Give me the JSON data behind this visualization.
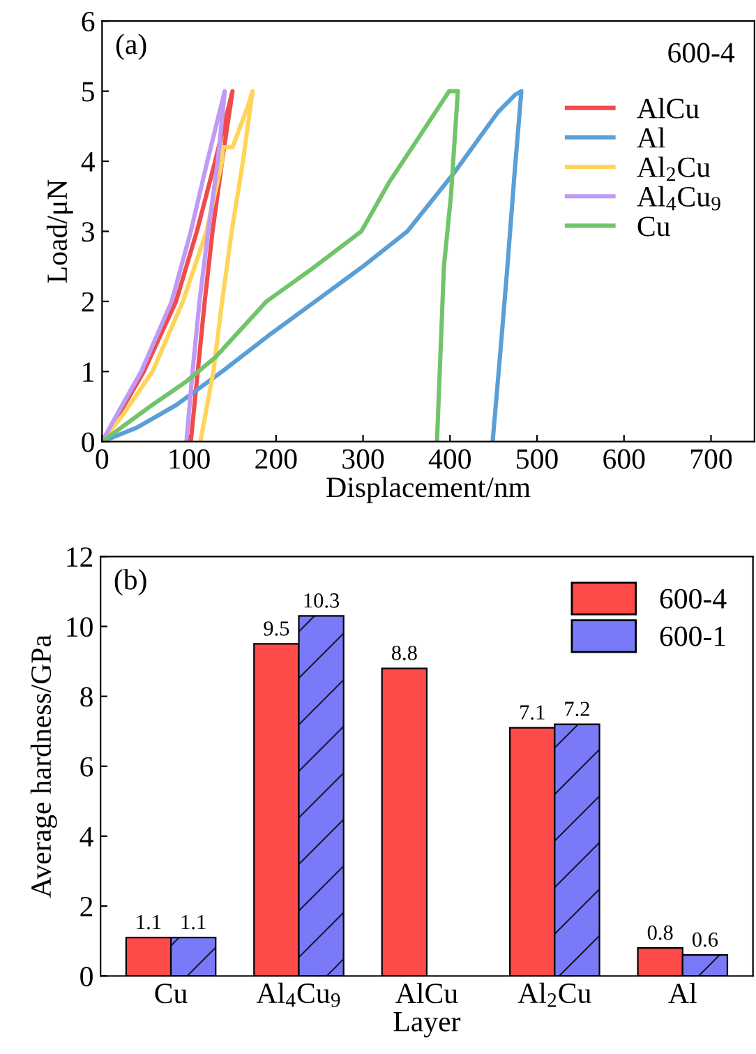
{
  "chart_data": [
    {
      "type": "line",
      "xlabel": "Displacement/nm",
      "ylabel": "Load/μN",
      "xlim": [
        0,
        750
      ],
      "ylim": [
        0,
        6
      ],
      "xticks": [
        0,
        100,
        200,
        300,
        400,
        500,
        600,
        700
      ],
      "yticks": [
        0,
        1,
        2,
        3,
        4,
        5,
        6
      ],
      "annotations": [
        "(a)",
        "600-4"
      ],
      "legend": "top right",
      "grid": false,
      "marker": "none",
      "line_style": "solid",
      "series": [
        {
          "name": "AlCu",
          "color": "#f04b4b",
          "x": [
            0,
            20,
            48,
            85,
            109,
            130,
            146,
            150,
            138,
            127,
            118,
            110,
            102
          ],
          "values": [
            0,
            0.4,
            1,
            2,
            3,
            4,
            4.8,
            5,
            4,
            3,
            2,
            1,
            0
          ]
        },
        {
          "name": "Al",
          "color": "#5a9fd6",
          "x": [
            0,
            40,
            85,
            138,
            190,
            245,
            300,
            351,
            405,
            455,
            475,
            482,
            474,
            466,
            458,
            449
          ],
          "values": [
            0,
            0.2,
            0.52,
            1,
            1.5,
            2,
            2.5,
            3,
            3.84,
            4.7,
            4.95,
            5,
            3.8,
            2.5,
            1.3,
            0
          ]
        },
        {
          "name": "Al$_{2}$Cu",
          "color": "#ffd45a",
          "x": [
            0,
            25,
            58,
            93,
            120,
            138,
            139,
            150,
            162,
            168,
            173,
            162,
            149,
            138,
            128,
            113
          ],
          "values": [
            0,
            0.4,
            1,
            2,
            3,
            4,
            4.2,
            4.2,
            4.6,
            4.8,
            5,
            4,
            3,
            2,
            1,
            0
          ]
        },
        {
          "name": "Al$_{4}$Cu$_{9}$",
          "color": "#c09af5",
          "x": [
            0,
            20,
            45,
            80,
            102,
            121,
            135,
            141,
            133,
            122,
            112,
            104,
            97
          ],
          "values": [
            0,
            0.45,
            1,
            2,
            3,
            4,
            4.7,
            5,
            4,
            3,
            2,
            1,
            0
          ]
        },
        {
          "name": "Cu",
          "color": "#72c46a",
          "x": [
            0,
            55,
            96,
            130,
            189,
            245,
            298,
            330,
            362,
            399,
            409,
            401,
            393,
            385
          ],
          "values": [
            0,
            0.5,
            0.85,
            1.2,
            2,
            2.5,
            3,
            3.7,
            4.3,
            5,
            5,
            3.5,
            2.5,
            0
          ]
        }
      ]
    },
    {
      "type": "bar",
      "xlabel": "Layer",
      "ylabel": "Average hardness/GPa",
      "categories": [
        "Cu",
        "Al$_{4}$Cu$_{9}$",
        "AlCu",
        "Al$_{2}$Cu",
        "Al"
      ],
      "ylim": [
        0,
        12
      ],
      "yticks": [
        0,
        2,
        4,
        6,
        8,
        10,
        12
      ],
      "annotations": [
        "(b)"
      ],
      "legend": "top right",
      "grid": false,
      "data_labels": true,
      "series": [
        {
          "name": "600-4",
          "color": "#ff4a4a",
          "values": [
            1.1,
            9.5,
            8.8,
            7.1,
            0.8
          ]
        },
        {
          "name": "600-1",
          "color": "#7a7af8",
          "values": [
            1.1,
            10.3,
            null,
            7.2,
            0.6
          ]
        }
      ]
    }
  ]
}
